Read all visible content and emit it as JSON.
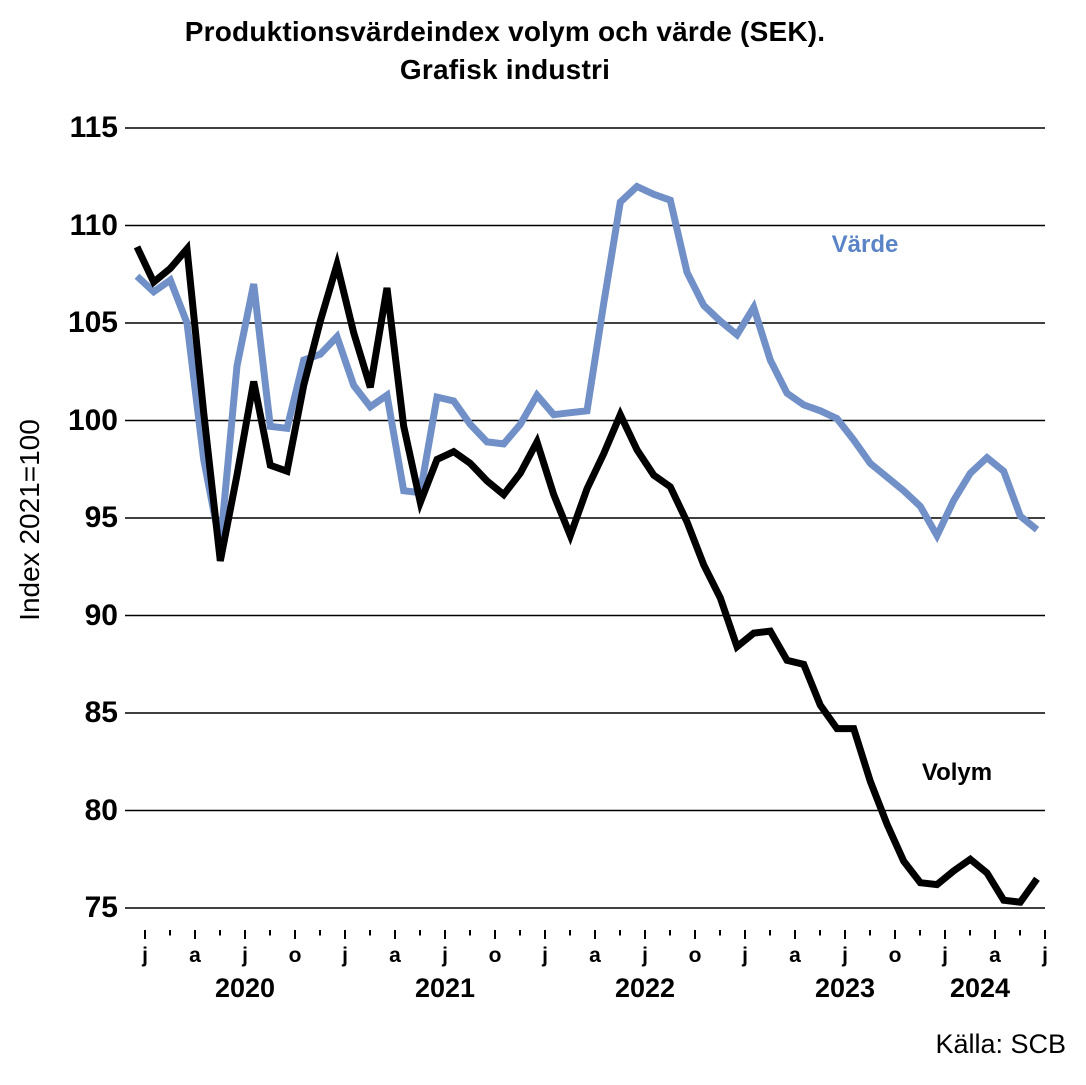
{
  "title": {
    "line1": "Produktionsvärdeindex volym och värde (SEK).",
    "line2": "Grafisk industri"
  },
  "source": "Källa: SCB",
  "chart_data": {
    "type": "line",
    "title": "Produktionsvärdeindex volym och värde (SEK). Grafisk industri",
    "ylabel": "Index 2021=100",
    "xlabel": "",
    "ylim": [
      75,
      115
    ],
    "grid": "horizontal",
    "legend_position": "inline-annotations",
    "y_ticks": [
      115,
      110,
      105,
      100,
      95,
      90,
      85,
      80,
      75
    ],
    "x_start": "2020-01",
    "x_end": "2024-07",
    "x_frequency": "monthly",
    "x_tick_years": [
      {
        "year": "2020",
        "month_labels": [
          "j",
          "a",
          "j",
          "o"
        ]
      },
      {
        "year": "2021",
        "month_labels": [
          "j",
          "a",
          "j",
          "o"
        ]
      },
      {
        "year": "2022",
        "month_labels": [
          "j",
          "a",
          "j",
          "o"
        ]
      },
      {
        "year": "2023",
        "month_labels": [
          "j",
          "a",
          "j",
          "o"
        ]
      },
      {
        "year": "2024",
        "month_labels": [
          "j",
          "a",
          "j"
        ]
      }
    ],
    "series": [
      {
        "name": "Volym",
        "color": "#000000",
        "label_color": "#000000",
        "values": [
          108.9,
          107.1,
          107.8,
          108.8,
          100.4,
          92.8,
          97.2,
          102.0,
          97.7,
          97.4,
          101.8,
          105.1,
          108.0,
          104.5,
          101.7,
          106.8,
          99.7,
          95.8,
          98.0,
          98.4,
          97.8,
          96.9,
          96.2,
          97.3,
          98.9,
          96.2,
          94.1,
          96.5,
          98.3,
          100.3,
          98.5,
          97.2,
          96.6,
          94.8,
          92.6,
          90.9,
          88.4,
          89.1,
          89.2,
          87.7,
          87.5,
          85.4,
          84.2,
          84.2,
          81.5,
          79.3,
          77.4,
          76.3,
          76.2,
          76.9,
          77.5,
          76.8,
          75.4,
          75.3,
          76.5
        ]
      },
      {
        "name": "Värde",
        "color": "#7190C8",
        "label_color": "#5A84C7",
        "values": [
          107.4,
          106.6,
          107.2,
          105.0,
          98.0,
          93.6,
          102.8,
          107.0,
          99.7,
          99.6,
          103.1,
          103.4,
          104.3,
          101.8,
          100.7,
          101.3,
          96.4,
          96.3,
          101.2,
          101.0,
          99.8,
          98.9,
          98.8,
          99.8,
          101.3,
          100.3,
          100.4,
          100.5,
          106.0,
          111.2,
          112.0,
          111.6,
          111.3,
          107.6,
          105.9,
          105.1,
          104.4,
          105.8,
          103.1,
          101.4,
          100.8,
          100.5,
          100.1,
          99.0,
          97.8,
          97.1,
          96.4,
          95.6,
          94.1,
          95.9,
          97.3,
          98.1,
          97.4,
          95.1,
          94.4
        ]
      }
    ]
  }
}
